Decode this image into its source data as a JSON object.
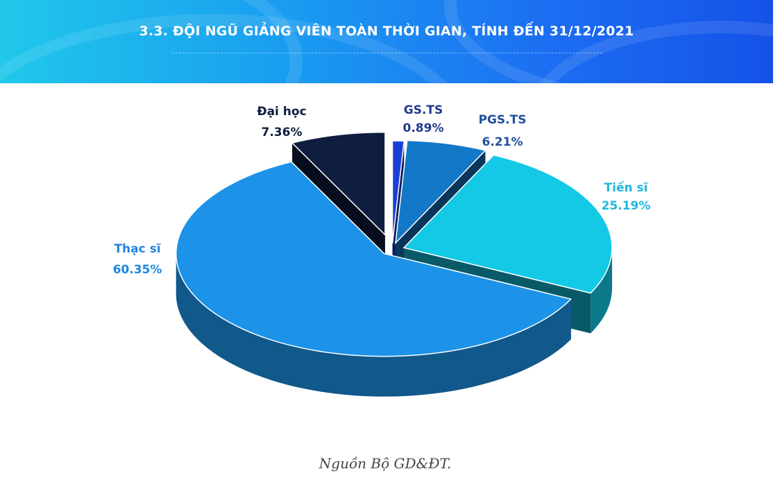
{
  "header": {
    "title": "3.3. ĐỘI NGŨ GIẢNG VIÊN TOÀN THỜI GIAN, TÍNH ĐẾN 31/12/2021"
  },
  "chart_data": {
    "type": "pie",
    "title": "3.3. ĐỘI NGŨ GIẢNG VIÊN TOÀN THỜI GIAN, TÍNH ĐẾN 31/12/2021",
    "categories": [
      "GS.TS",
      "PGS.TS",
      "Tiến sĩ",
      "Thạc sĩ",
      "Đại học"
    ],
    "values": [
      0.89,
      6.21,
      25.19,
      60.35,
      7.36
    ],
    "value_labels": [
      "0.89%",
      "6.21%",
      "25.19%",
      "60.35%",
      "7.36%"
    ],
    "colors": [
      "#1a3fd6",
      "#1478c8",
      "#13c9e6",
      "#1c93e8",
      "#0f1d3f"
    ],
    "label_colors": [
      "#1f3a93",
      "#1f4f9e",
      "#1fb8dc",
      "#1f86e0",
      "#0f1d3f"
    ],
    "style": "3d-exploded"
  },
  "caption": "Nguồn Bộ GD&ĐT."
}
